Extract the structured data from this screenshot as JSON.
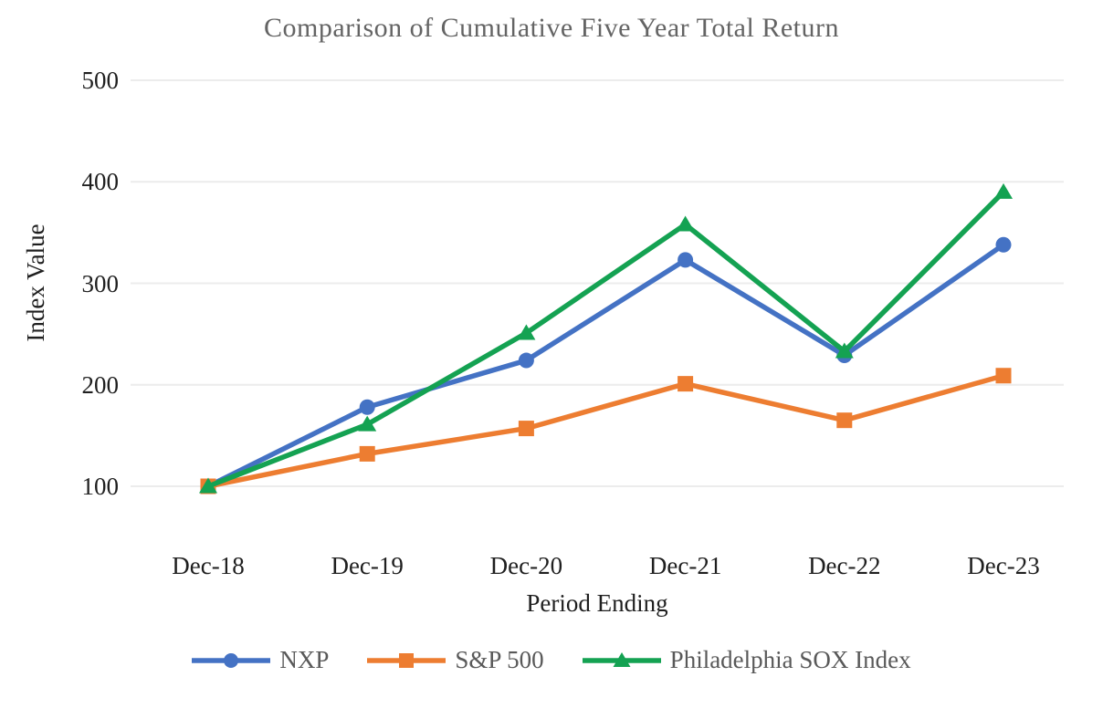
{
  "chart_data": {
    "type": "line",
    "title": "Comparison of Cumulative Five Year Total Return",
    "xlabel": "Period Ending",
    "ylabel": "Index Value",
    "categories": [
      "Dec-18",
      "Dec-19",
      "Dec-20",
      "Dec-21",
      "Dec-22",
      "Dec-23"
    ],
    "yticks": [
      100,
      200,
      300,
      400,
      500
    ],
    "ylim": [
      100,
      500
    ],
    "grid": "horizontal",
    "legend_position": "bottom",
    "gridline_color": "#ececec",
    "series": [
      {
        "name": "NXP",
        "marker": "circle",
        "color": "#4472C4",
        "values": [
          100,
          178,
          224,
          323,
          229,
          338
        ]
      },
      {
        "name": "S&P 500",
        "marker": "square",
        "color": "#ED7D31",
        "values": [
          100,
          132,
          157,
          201,
          165,
          209
        ]
      },
      {
        "name": "Philadelphia SOX Index",
        "marker": "triangle",
        "color": "#14A252",
        "values": [
          100,
          161,
          251,
          358,
          233,
          390
        ]
      }
    ]
  }
}
